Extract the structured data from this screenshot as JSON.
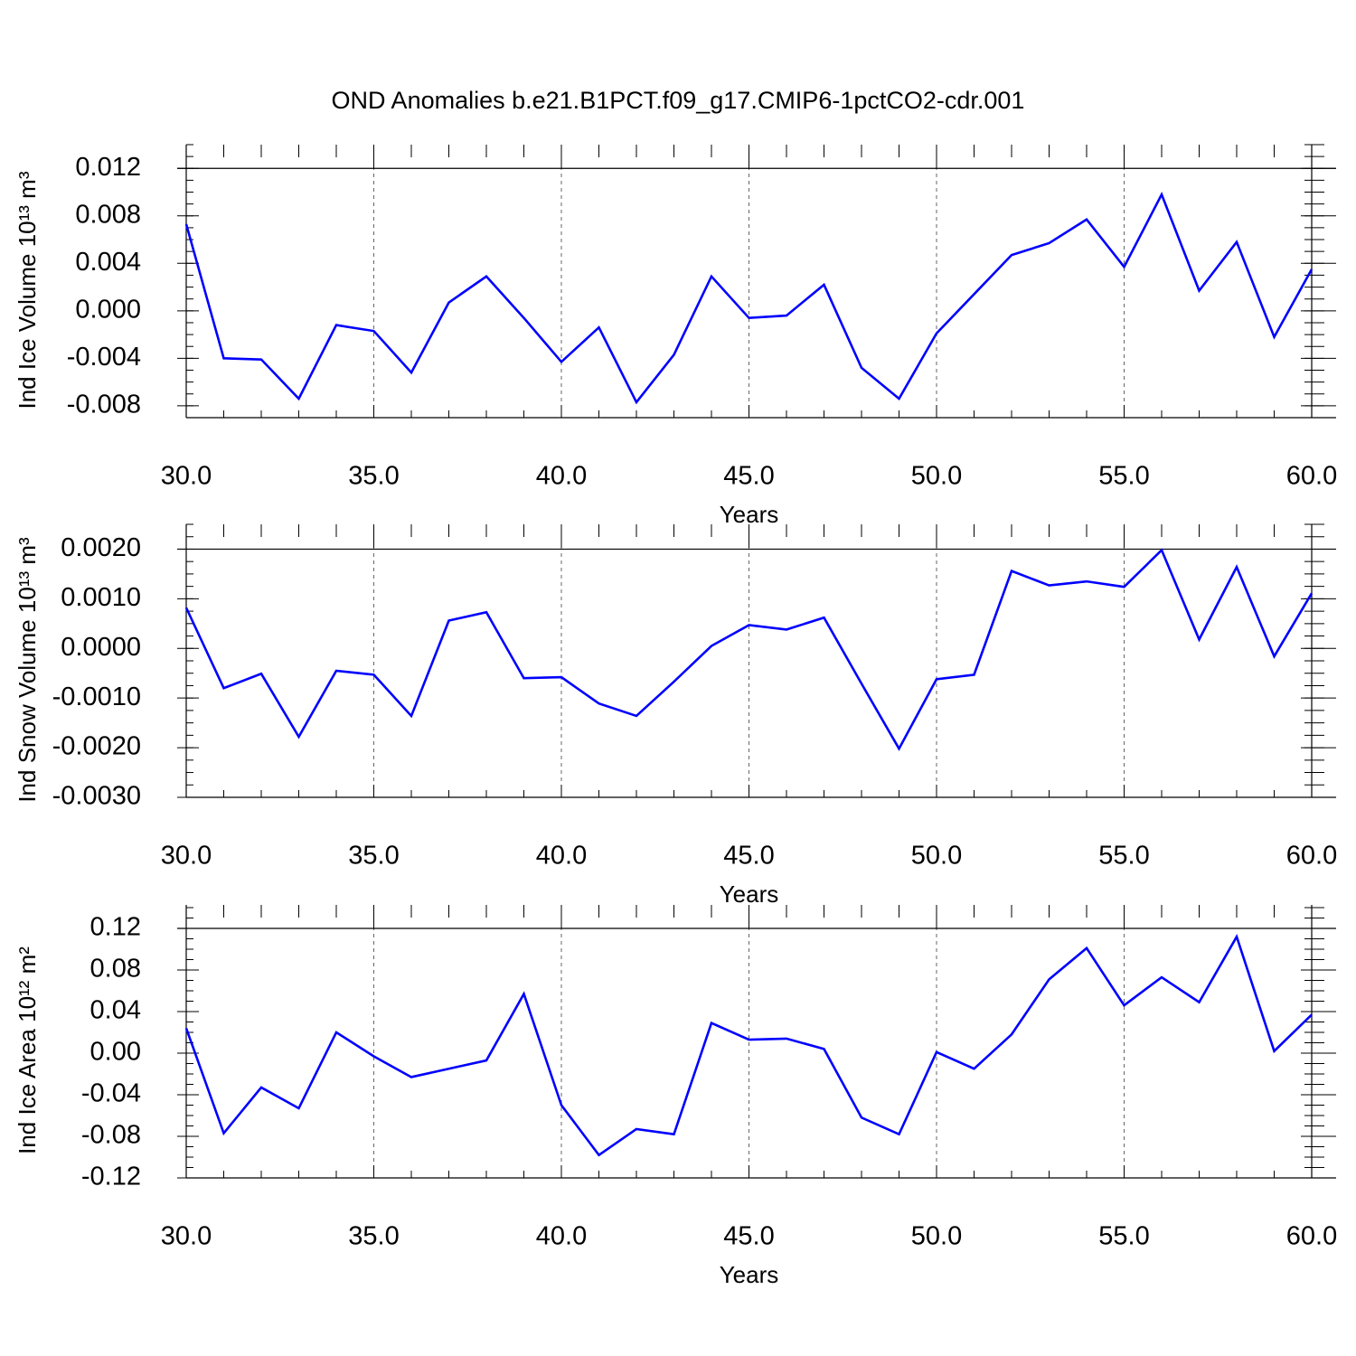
{
  "title": "OND Anomalies b.e21.B1PCT.f09_g17.CMIP6-1pctCO2-cdr.001",
  "chart_data": [
    {
      "type": "line",
      "xlabel": "Years",
      "ylabel": "Ind Ice Volume 10¹³ m³",
      "x": [
        30,
        31,
        32,
        33,
        34,
        35,
        36,
        37,
        38,
        39,
        40,
        41,
        42,
        43,
        44,
        45,
        46,
        47,
        48,
        49,
        50,
        51,
        52,
        53,
        54,
        55,
        56,
        57,
        58,
        59,
        60
      ],
      "series": [
        {
          "name": "Ind Ice Volume",
          "color": "#0000ff",
          "values": [
            0.0073,
            -0.004,
            -0.0041,
            -0.0074,
            -0.0012,
            -0.0017,
            -0.0052,
            0.0007,
            0.0029,
            -0.0006,
            -0.0043,
            -0.0014,
            -0.0077,
            -0.0037,
            0.0029,
            -0.0006,
            -0.0004,
            0.0022,
            -0.0048,
            -0.0074,
            -0.0019,
            0.0014,
            0.0047,
            0.0057,
            0.0077,
            0.0037,
            0.0098,
            0.0017,
            0.0058,
            -0.0022,
            0.0035
          ]
        }
      ],
      "xlim": [
        30,
        60
      ],
      "xticks": [
        {
          "value": 30,
          "label": "30.0"
        },
        {
          "value": 35,
          "label": "35.0"
        },
        {
          "value": 40,
          "label": "40.0"
        },
        {
          "value": 45,
          "label": "45.0"
        },
        {
          "value": 50,
          "label": "50.0"
        },
        {
          "value": 55,
          "label": "55.0"
        },
        {
          "value": 60,
          "label": "60.0"
        }
      ],
      "ylim": [
        -0.009,
        0.014
      ],
      "yticks": [
        -0.008,
        -0.004,
        {
          "value": 0,
          "label": "0.000"
        },
        0.004,
        0.008,
        0.012
      ],
      "grid": true
    },
    {
      "type": "line",
      "xlabel": "Years",
      "ylabel": "Ind Snow Volume 10¹³ m³",
      "x": [
        30,
        31,
        32,
        33,
        34,
        35,
        36,
        37,
        38,
        39,
        40,
        41,
        42,
        43,
        44,
        45,
        46,
        47,
        48,
        49,
        50,
        51,
        52,
        53,
        54,
        55,
        56,
        57,
        58,
        59,
        60
      ],
      "series": [
        {
          "name": "Ind Snow Volume",
          "color": "#0000ff",
          "values": [
            0.00082,
            -0.0008,
            -0.00051,
            -0.00178,
            -0.00045,
            -0.00053,
            -0.00136,
            0.00056,
            0.00073,
            -0.0006,
            -0.00058,
            -0.00111,
            -0.00136,
            -0.00067,
            5e-05,
            0.00047,
            0.00038,
            0.00062,
            -0.00071,
            -0.00202,
            -0.00062,
            -0.00053,
            0.00156,
            0.00127,
            0.00135,
            0.00124,
            0.00198,
            0.00018,
            0.00164,
            -0.00016,
            0.00111
          ]
        }
      ],
      "xlim": [
        30,
        60
      ],
      "xticks": [
        {
          "value": 30,
          "label": "30.0"
        },
        {
          "value": 35,
          "label": "35.0"
        },
        {
          "value": 40,
          "label": "40.0"
        },
        {
          "value": 45,
          "label": "45.0"
        },
        {
          "value": 50,
          "label": "50.0"
        },
        {
          "value": 55,
          "label": "55.0"
        },
        {
          "value": 60,
          "label": "60.0"
        }
      ],
      "ylim": [
        -0.003,
        0.0025
      ],
      "yticks": [
        {
          "value": -0.003,
          "label": "-0.0030"
        },
        {
          "value": -0.002,
          "label": "-0.0020"
        },
        {
          "value": -0.001,
          "label": "-0.0010"
        },
        {
          "value": 0,
          "label": "0.0000"
        },
        {
          "value": 0.001,
          "label": "0.0010"
        },
        {
          "value": 0.002,
          "label": "0.0020"
        }
      ],
      "grid": true
    },
    {
      "type": "line",
      "xlabel": "Years",
      "ylabel": "Ind Ice Area 10¹² m²",
      "x": [
        30,
        31,
        32,
        33,
        34,
        35,
        36,
        37,
        38,
        39,
        40,
        41,
        42,
        43,
        44,
        45,
        46,
        47,
        48,
        49,
        50,
        51,
        52,
        53,
        54,
        55,
        56,
        57,
        58,
        59,
        60
      ],
      "series": [
        {
          "name": "Ind Ice Area",
          "color": "#0000ff",
          "values": [
            0.024,
            -0.077,
            -0.033,
            -0.053,
            0.02,
            -0.003,
            -0.023,
            -0.015,
            -0.007,
            0.057,
            -0.05,
            -0.098,
            -0.073,
            -0.078,
            0.029,
            0.013,
            0.014,
            0.004,
            -0.062,
            -0.078,
            0.001,
            -0.015,
            0.018,
            0.071,
            0.101,
            0.046,
            0.073,
            0.049,
            0.112,
            0.002,
            0.037
          ]
        }
      ],
      "xlim": [
        30,
        60
      ],
      "xticks": [
        {
          "value": 30,
          "label": "30.0"
        },
        {
          "value": 35,
          "label": "35.0"
        },
        {
          "value": 40,
          "label": "40.0"
        },
        {
          "value": 45,
          "label": "45.0"
        },
        {
          "value": 50,
          "label": "50.0"
        },
        {
          "value": 55,
          "label": "55.0"
        },
        {
          "value": 60,
          "label": "60.0"
        }
      ],
      "ylim": [
        -0.12,
        0.1426
      ],
      "yticks": [
        -0.12,
        -0.08,
        -0.04,
        {
          "value": 0,
          "label": "0.00"
        },
        0.04,
        0.08,
        0.12
      ],
      "grid": true
    }
  ]
}
